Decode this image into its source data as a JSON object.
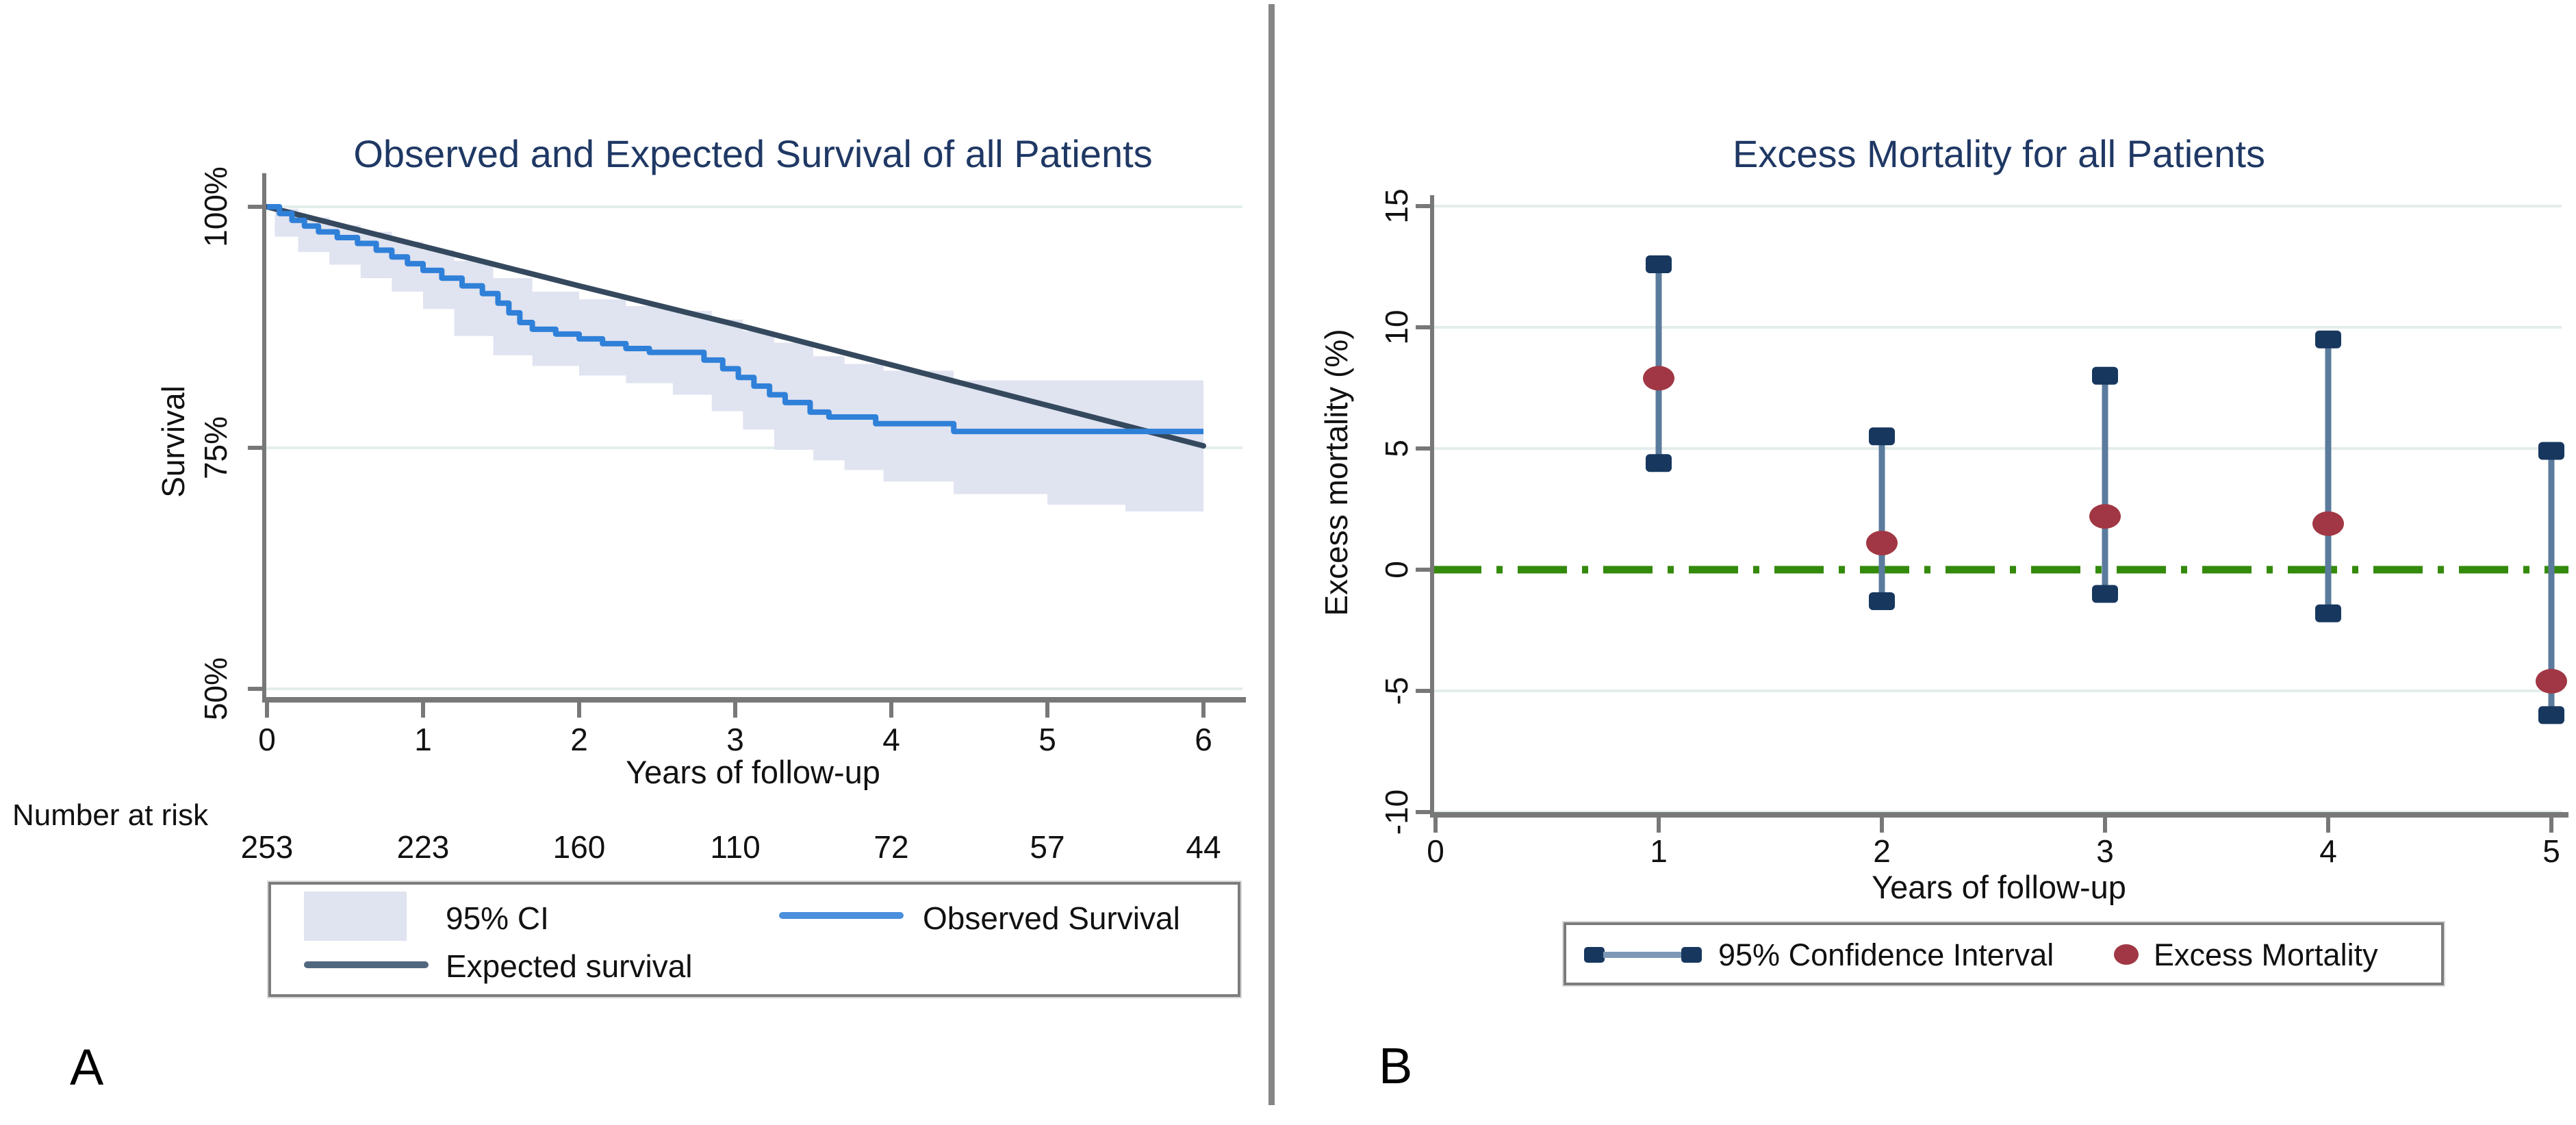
{
  "figure": {
    "panel_a_label": "A",
    "panel_b_label": "B",
    "background": "#ffffff"
  },
  "colors": {
    "title": "#1f3864",
    "axis_line": "#787878",
    "tick_text": "#1a1a1a",
    "gridline": "#e3eeec",
    "observed": "#2f80d8",
    "observed_legend": "#4a90dd",
    "expected": "#35495e",
    "expected_legend": "#50677e",
    "ci_band": "#e0e3f0",
    "ref_line_green": "#348a0b",
    "ci_whisker": "#5b7b9d",
    "ci_whisker_legend": "#7d99b5",
    "ci_cap": "#17375e",
    "estimate_dot": "#a13744",
    "legend_border": "#7c7c7c",
    "divider": "#868686",
    "label_ab": "#000000"
  },
  "chart_data": [
    {
      "id": "observed-expected-survival",
      "type": "line",
      "title": "Observed and Expected Survival of all Patients",
      "xlabel": "Years of follow-up",
      "ylabel": "Survival",
      "xlim": [
        0,
        6
      ],
      "ylim": [
        48.5,
        103.5
      ],
      "grid": true,
      "legend_position": "bottom",
      "xticks": [
        0,
        1,
        2,
        3,
        4,
        5,
        6
      ],
      "yticks": [
        {
          "value": 100,
          "label": "100%"
        },
        {
          "value": 75,
          "label": "75%"
        },
        {
          "value": 50,
          "label": "50%"
        }
      ],
      "series": [
        {
          "name": "95% CI",
          "type": "band",
          "upper": [
            [
              0.05,
              99.8
            ],
            [
              0.2,
              98.9
            ],
            [
              0.4,
              98.1
            ],
            [
              0.6,
              97.4
            ],
            [
              0.8,
              96.4
            ],
            [
              1.0,
              95.5
            ],
            [
              1.2,
              94.4
            ],
            [
              1.45,
              92.6
            ],
            [
              1.7,
              91.2
            ],
            [
              2.0,
              90.4
            ],
            [
              2.3,
              89.7
            ],
            [
              2.6,
              89.2
            ],
            [
              2.85,
              88.3
            ],
            [
              3.05,
              87.1
            ],
            [
              3.25,
              85.9
            ],
            [
              3.5,
              84.5
            ],
            [
              3.7,
              83.7
            ],
            [
              3.95,
              83.0
            ],
            [
              4.4,
              82.0
            ],
            [
              6.0,
              81.9
            ]
          ],
          "lower": [
            [
              0.05,
              99.0
            ],
            [
              0.2,
              96.9
            ],
            [
              0.4,
              95.3
            ],
            [
              0.6,
              94.0
            ],
            [
              0.8,
              92.6
            ],
            [
              1.0,
              91.2
            ],
            [
              1.2,
              89.4
            ],
            [
              1.45,
              86.6
            ],
            [
              1.7,
              84.6
            ],
            [
              2.0,
              83.5
            ],
            [
              2.3,
              82.5
            ],
            [
              2.6,
              81.7
            ],
            [
              2.85,
              80.5
            ],
            [
              3.05,
              78.8
            ],
            [
              3.25,
              76.9
            ],
            [
              3.5,
              74.8
            ],
            [
              3.7,
              73.7
            ],
            [
              3.95,
              72.7
            ],
            [
              4.4,
              71.5
            ],
            [
              5.0,
              70.2
            ],
            [
              5.5,
              69.1
            ],
            [
              6.0,
              68.4
            ]
          ]
        },
        {
          "name": "Observed Survival",
          "type": "step",
          "points": [
            [
              0,
              100
            ],
            [
              0.08,
              99.3
            ],
            [
              0.16,
              98.6
            ],
            [
              0.24,
              98.0
            ],
            [
              0.33,
              97.4
            ],
            [
              0.45,
              96.8
            ],
            [
              0.58,
              96.2
            ],
            [
              0.7,
              95.5
            ],
            [
              0.8,
              94.8
            ],
            [
              0.9,
              94.1
            ],
            [
              1.0,
              93.4
            ],
            [
              1.12,
              92.6
            ],
            [
              1.25,
              91.8
            ],
            [
              1.38,
              91.0
            ],
            [
              1.48,
              90.0
            ],
            [
              1.55,
              89.0
            ],
            [
              1.62,
              88.0
            ],
            [
              1.7,
              87.3
            ],
            [
              1.85,
              86.8
            ],
            [
              2.0,
              86.3
            ],
            [
              2.15,
              85.8
            ],
            [
              2.3,
              85.3
            ],
            [
              2.45,
              84.9
            ],
            [
              2.8,
              84.1
            ],
            [
              2.92,
              83.2
            ],
            [
              3.02,
              82.3
            ],
            [
              3.12,
              81.4
            ],
            [
              3.22,
              80.5
            ],
            [
              3.32,
              79.7
            ],
            [
              3.48,
              78.7
            ],
            [
              3.6,
              78.2
            ],
            [
              3.9,
              77.5
            ],
            [
              4.4,
              76.7
            ],
            [
              6.0,
              76.7
            ]
          ]
        },
        {
          "name": "Expected survival",
          "type": "line",
          "points": [
            [
              0,
              100
            ],
            [
              1,
              95.9
            ],
            [
              2,
              91.8
            ],
            [
              3,
              87.8
            ],
            [
              4,
              83.6
            ],
            [
              5,
              79.4
            ],
            [
              6,
              75.2
            ]
          ]
        }
      ],
      "number_at_risk": {
        "label": "Number at risk",
        "years": [
          0,
          1,
          2,
          3,
          4,
          5,
          6
        ],
        "values": [
          253,
          223,
          160,
          110,
          72,
          57,
          44
        ]
      },
      "legend": [
        {
          "label": "95% CI",
          "marker": "band-swatch"
        },
        {
          "label": "Observed Survival",
          "marker": "blue-line"
        },
        {
          "label": "Expected survival",
          "marker": "dark-line"
        }
      ]
    },
    {
      "id": "excess-mortality",
      "type": "scatter",
      "title": "Excess Mortality for all Patients",
      "xlabel": "Years of follow-up",
      "ylabel": "Excess mortality (%)",
      "xlim": [
        -0.1,
        5.1
      ],
      "ylim": [
        -11.8,
        16.2
      ],
      "grid": true,
      "legend_position": "bottom",
      "xticks": [
        0,
        1,
        2,
        3,
        4,
        5
      ],
      "yticks": [
        15,
        10,
        5,
        0,
        -5,
        -10
      ],
      "reference_line": {
        "y": 0,
        "style": "dash-dot",
        "color_key": "ref_line_green"
      },
      "points": [
        {
          "x": 1,
          "estimate": 7.9,
          "ci_low": 4.4,
          "ci_high": 12.6
        },
        {
          "x": 2,
          "estimate": 1.1,
          "ci_low": -1.3,
          "ci_high": 5.5
        },
        {
          "x": 3,
          "estimate": 2.2,
          "ci_low": -1.0,
          "ci_high": 8.0
        },
        {
          "x": 4,
          "estimate": 1.9,
          "ci_low": -1.8,
          "ci_high": 9.5
        },
        {
          "x": 5,
          "estimate": -4.6,
          "ci_low": -6.0,
          "ci_high": 4.9
        }
      ],
      "legend": [
        {
          "label": "95% Confidence Interval",
          "marker": "ci-whisker"
        },
        {
          "label": "Excess Mortality",
          "marker": "red-dot"
        }
      ]
    }
  ]
}
